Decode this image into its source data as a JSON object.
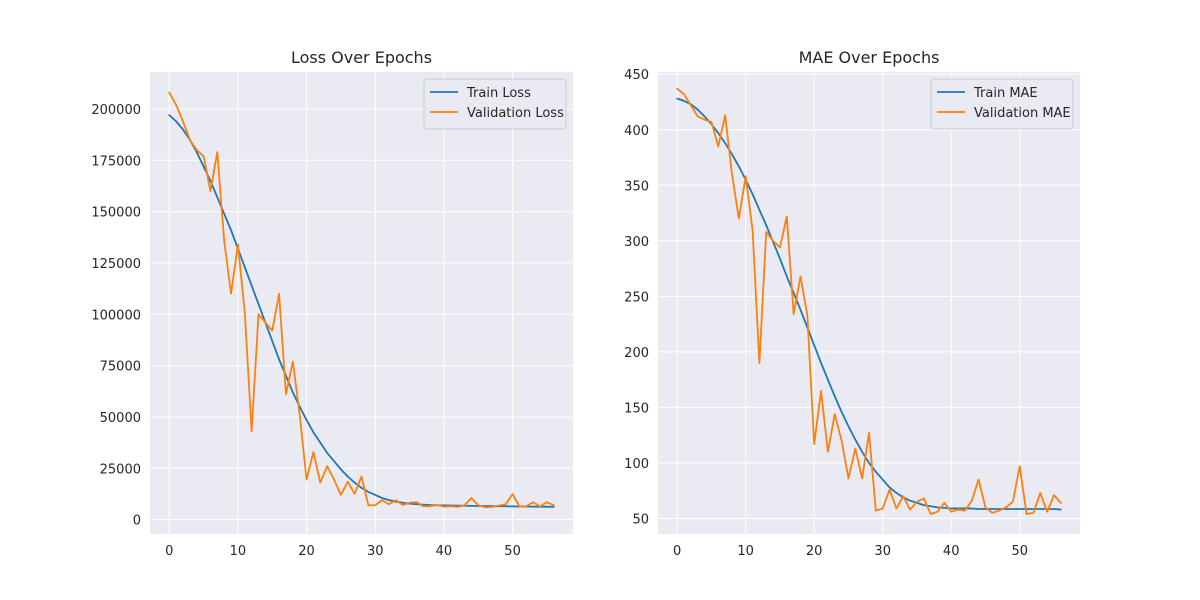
{
  "chart_data": [
    {
      "type": "line",
      "title": "Loss Over Epochs",
      "xlabel": "",
      "ylabel": "",
      "xlim": [
        -2.8,
        58.8
      ],
      "ylim": [
        -7000,
        218000
      ],
      "xticks": [
        0,
        10,
        20,
        30,
        40,
        50
      ],
      "xtick_labels": [
        "0",
        "10",
        "20",
        "30",
        "40",
        "50"
      ],
      "yticks": [
        0,
        25000,
        50000,
        75000,
        100000,
        125000,
        150000,
        175000,
        200000
      ],
      "ytick_labels": [
        "0",
        "25000",
        "50000",
        "75000",
        "100000",
        "125000",
        "150000",
        "175000",
        "200000"
      ],
      "grid": true,
      "legend_position": "top-right",
      "x": [
        0,
        1,
        2,
        3,
        4,
        5,
        6,
        7,
        8,
        9,
        10,
        11,
        12,
        13,
        14,
        15,
        16,
        17,
        18,
        19,
        20,
        21,
        22,
        23,
        24,
        25,
        26,
        27,
        28,
        29,
        30,
        31,
        32,
        33,
        34,
        35,
        36,
        37,
        38,
        39,
        40,
        41,
        42,
        43,
        44,
        45,
        46,
        47,
        48,
        49,
        50,
        51,
        52,
        53,
        54,
        55,
        56
      ],
      "series": [
        {
          "name": "Train Loss",
          "color": "#1f77b4",
          "values": [
            197000,
            194000,
            190000,
            185000,
            179000,
            172000,
            165000,
            157000,
            149000,
            141000,
            132000,
            123000,
            114000,
            105000,
            96000,
            87000,
            78000,
            70000,
            62000,
            55000,
            48500,
            42500,
            37500,
            32500,
            28500,
            24500,
            21000,
            18000,
            15500,
            13500,
            12000,
            10500,
            9500,
            8800,
            8200,
            7800,
            7500,
            7300,
            7100,
            7000,
            6900,
            6850,
            6800,
            6750,
            6700,
            6650,
            6600,
            6550,
            6500,
            6500,
            6450,
            6400,
            6400,
            6350,
            6300,
            6300,
            6250
          ]
        },
        {
          "name": "Validation Loss",
          "color": "#ff7f0e",
          "values": [
            208000,
            202000,
            194000,
            185000,
            180000,
            177000,
            160000,
            179000,
            136000,
            110000,
            134000,
            101000,
            43000,
            100000,
            96000,
            92000,
            110000,
            61000,
            77000,
            51000,
            19500,
            33000,
            18000,
            26000,
            19500,
            12000,
            18500,
            12500,
            21000,
            7000,
            7000,
            9500,
            7500,
            9500,
            7200,
            8200,
            8500,
            6500,
            6500,
            7200,
            6300,
            6500,
            6200,
            7000,
            10500,
            7000,
            6000,
            6200,
            6800,
            7500,
            12500,
            6300,
            6500,
            8500,
            6400,
            8500,
            7000
          ]
        }
      ]
    },
    {
      "type": "line",
      "title": "MAE Over Epochs",
      "xlabel": "",
      "ylabel": "",
      "xlim": [
        -2.8,
        58.8
      ],
      "ylim": [
        36,
        452
      ],
      "xticks": [
        0,
        10,
        20,
        30,
        40,
        50
      ],
      "xtick_labels": [
        "0",
        "10",
        "20",
        "30",
        "40",
        "50"
      ],
      "yticks": [
        50,
        100,
        150,
        200,
        250,
        300,
        350,
        400,
        450
      ],
      "ytick_labels": [
        "50",
        "100",
        "150",
        "200",
        "250",
        "300",
        "350",
        "400",
        "450"
      ],
      "grid": true,
      "legend_position": "top-right",
      "x": [
        0,
        1,
        2,
        3,
        4,
        5,
        6,
        7,
        8,
        9,
        10,
        11,
        12,
        13,
        14,
        15,
        16,
        17,
        18,
        19,
        20,
        21,
        22,
        23,
        24,
        25,
        26,
        27,
        28,
        29,
        30,
        31,
        32,
        33,
        34,
        35,
        36,
        37,
        38,
        39,
        40,
        41,
        42,
        43,
        44,
        45,
        46,
        47,
        48,
        49,
        50,
        51,
        52,
        53,
        54,
        55,
        56
      ],
      "series": [
        {
          "name": "Train MAE",
          "color": "#1f77b4",
          "values": [
            428,
            426,
            423,
            418,
            412,
            405,
            397,
            388,
            378,
            367,
            355,
            342,
            328,
            314,
            299,
            284,
            268,
            253,
            238,
            222,
            206,
            190,
            175,
            160,
            146,
            133,
            121,
            110,
            100,
            92,
            85,
            78,
            73,
            69,
            66,
            64,
            62,
            61,
            60,
            59.5,
            59,
            59,
            59,
            59,
            58.5,
            58.5,
            58.5,
            58.5,
            58.5,
            58.5,
            58.5,
            58.5,
            58.5,
            58.5,
            58.5,
            58.5,
            58
          ]
        },
        {
          "name": "Validation MAE",
          "color": "#ff7f0e",
          "values": [
            437,
            432,
            422,
            412,
            409,
            407,
            385,
            413,
            360,
            320,
            358,
            310,
            190,
            308,
            300,
            294,
            322,
            234,
            268,
            233,
            117,
            165,
            110,
            144,
            120,
            86,
            113,
            86,
            127,
            57,
            59,
            76,
            59,
            70,
            58,
            65,
            68,
            54,
            56,
            64,
            56,
            58,
            57,
            66,
            85,
            60,
            55,
            57,
            60,
            65,
            97,
            54,
            55,
            73,
            56,
            71,
            64
          ]
        }
      ]
    }
  ]
}
